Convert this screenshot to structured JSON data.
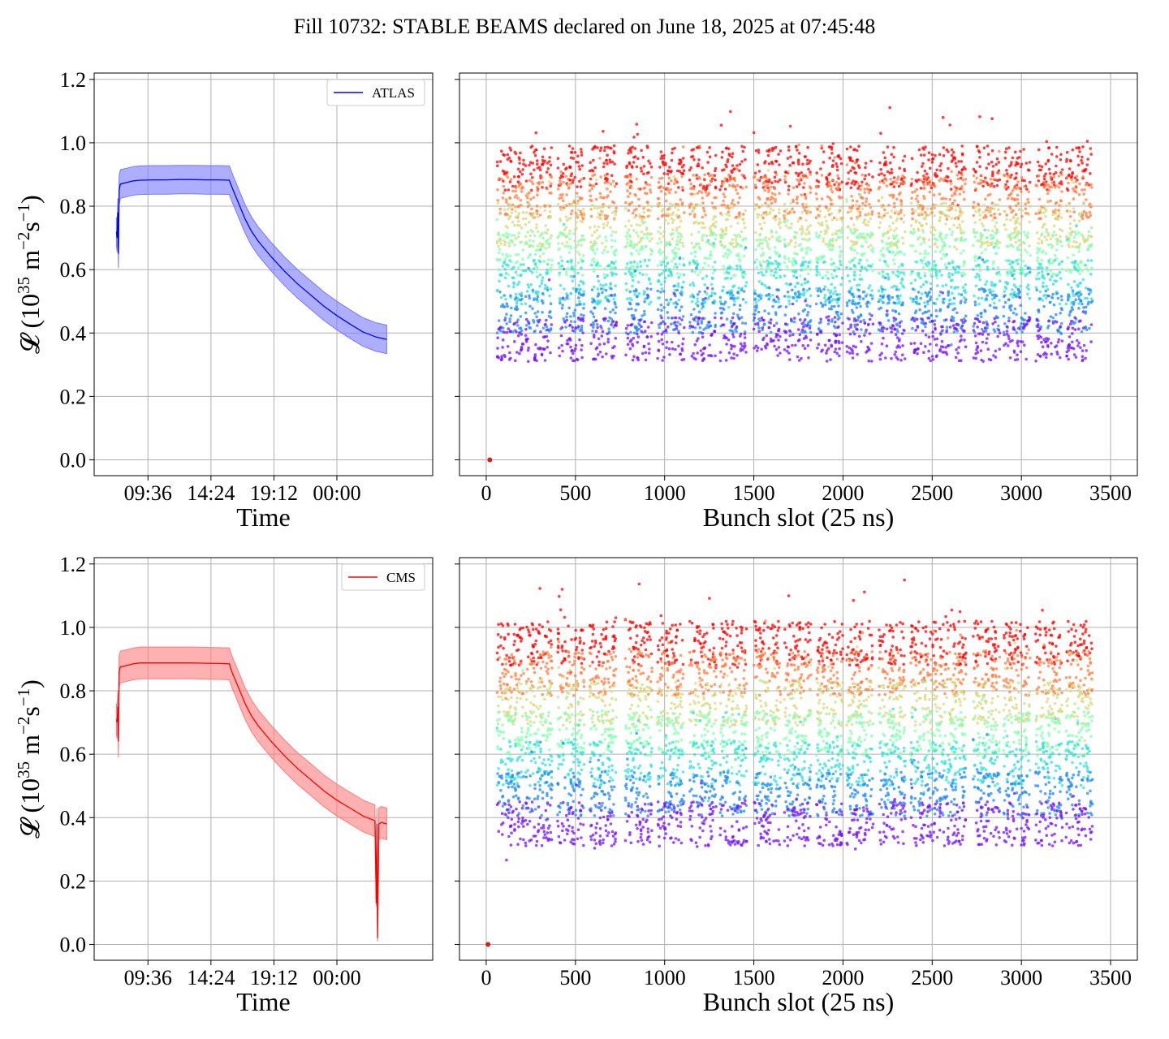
{
  "title": "Fill 10732: STABLE BEAMS declared on June 18, 2025 at 07:45:48",
  "colors": {
    "atlas": "#0000ff",
    "atlas_band": "#7878ff",
    "cms": "#ff0000",
    "cms_band": "#ff7b7b",
    "grid": "#b0b0b0"
  },
  "chart_data": [
    {
      "id": "atlas-time",
      "type": "line",
      "xlabel": "Time",
      "ylabel": "𝓛 (10^35 m^-2 s^-1)",
      "ylim": [
        -0.05,
        1.22
      ],
      "xlim_hours": [
        5.5,
        31.3
      ],
      "x_ticks": [
        {
          "label": "09:36",
          "h": 9.6
        },
        {
          "label": "14:24",
          "h": 14.4
        },
        {
          "label": "19:12",
          "h": 19.2
        },
        {
          "label": "00:00",
          "h": 24.0
        }
      ],
      "y_ticks": [
        "0.0",
        "0.2",
        "0.4",
        "0.6",
        "0.8",
        "1.0",
        "1.2"
      ],
      "grid": true,
      "legend": {
        "label": "ATLAS",
        "placement": "top-right"
      },
      "series": {
        "name": "ATLAS",
        "x_hours": [
          7.2,
          7.25,
          7.3,
          7.35,
          7.4,
          7.5,
          8.0,
          8.5,
          9.0,
          10.0,
          11.0,
          12.0,
          13.0,
          14.0,
          15.0,
          15.8,
          16.0,
          16.5,
          17.0,
          17.5,
          18.0,
          19.0,
          20.0,
          21.0,
          22.0,
          23.0,
          24.0,
          25.0,
          26.0,
          27.0,
          27.8
        ],
        "y": [
          0.72,
          0.7,
          0.78,
          0.65,
          0.85,
          0.87,
          0.875,
          0.88,
          0.882,
          0.883,
          0.883,
          0.884,
          0.884,
          0.883,
          0.883,
          0.882,
          0.86,
          0.81,
          0.76,
          0.72,
          0.69,
          0.64,
          0.595,
          0.555,
          0.52,
          0.485,
          0.455,
          0.428,
          0.403,
          0.387,
          0.38
        ],
        "band": 0.045
      }
    },
    {
      "id": "atlas-bunch",
      "type": "scatter",
      "xlabel": "Bunch slot (25 ns)",
      "ylim": [
        -0.05,
        1.22
      ],
      "xlim": [
        -150,
        3650
      ],
      "x_ticks": [
        "0",
        "500",
        "1000",
        "1500",
        "2000",
        "2500",
        "3000",
        "3500"
      ],
      "grid": true,
      "colormap": "rainbow",
      "trains_start": [
        60,
        220,
        400,
        580,
        780,
        960,
        1140,
        1310,
        1500,
        1670,
        1850,
        2020,
        2200,
        2380,
        2540,
        2730,
        2900,
        3080,
        3250
      ],
      "train_length": 150,
      "lumi_range": [
        0.38,
        0.92
      ],
      "outlier_point": {
        "x": 20,
        "y": 0.0
      }
    },
    {
      "id": "cms-time",
      "type": "line",
      "xlabel": "Time",
      "ylabel": "𝓛 (10^35 m^-2 s^-1)",
      "ylim": [
        -0.05,
        1.22
      ],
      "xlim_hours": [
        5.5,
        31.3
      ],
      "x_ticks": [
        {
          "label": "09:36",
          "h": 9.6
        },
        {
          "label": "14:24",
          "h": 14.4
        },
        {
          "label": "19:12",
          "h": 19.2
        },
        {
          "label": "00:00",
          "h": 24.0
        }
      ],
      "y_ticks": [
        "0.0",
        "0.2",
        "0.4",
        "0.6",
        "0.8",
        "1.0",
        "1.2"
      ],
      "grid": true,
      "legend": {
        "label": "CMS",
        "placement": "top-right"
      },
      "series": {
        "name": "CMS",
        "x_hours": [
          7.2,
          7.25,
          7.3,
          7.35,
          7.4,
          7.5,
          8.0,
          8.5,
          9.0,
          10.0,
          11.0,
          12.0,
          13.0,
          14.0,
          15.0,
          15.8,
          16.0,
          16.5,
          17.0,
          17.5,
          18.0,
          19.0,
          20.0,
          21.0,
          22.0,
          23.0,
          24.0,
          25.0,
          26.0,
          26.9,
          27.0,
          27.05,
          27.1,
          27.2,
          27.4,
          27.8
        ],
        "y": [
          0.71,
          0.7,
          0.75,
          0.64,
          0.86,
          0.875,
          0.88,
          0.885,
          0.888,
          0.888,
          0.888,
          0.888,
          0.888,
          0.887,
          0.886,
          0.885,
          0.86,
          0.81,
          0.76,
          0.72,
          0.69,
          0.64,
          0.595,
          0.555,
          0.52,
          0.485,
          0.455,
          0.43,
          0.405,
          0.39,
          0.13,
          0.38,
          0.02,
          0.38,
          0.385,
          0.38
        ],
        "band": 0.05
      }
    },
    {
      "id": "cms-bunch",
      "type": "scatter",
      "xlabel": "Bunch slot (25 ns)",
      "ylim": [
        -0.05,
        1.22
      ],
      "xlim": [
        -150,
        3650
      ],
      "x_ticks": [
        "0",
        "500",
        "1000",
        "1500",
        "2000",
        "2500",
        "3000",
        "3500"
      ],
      "grid": true,
      "colormap": "rainbow",
      "trains_start": [
        60,
        220,
        400,
        580,
        780,
        960,
        1140,
        1310,
        1500,
        1670,
        1850,
        2020,
        2200,
        2380,
        2540,
        2730,
        2900,
        3080,
        3250
      ],
      "train_length": 150,
      "lumi_range": [
        0.38,
        0.95
      ],
      "outlier_point": {
        "x": 10,
        "y": 0.0
      }
    }
  ]
}
